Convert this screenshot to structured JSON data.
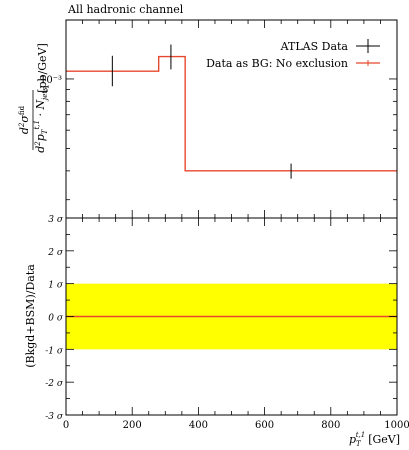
{
  "chart_data": [
    {
      "type": "line",
      "title": "All hadronic channel",
      "ylabel": "d²σ^fid / d²p_T^{t,1} · N_jets [pb/GeV]",
      "ylim_log_label": "10⁻³",
      "ylim": [
        0.00025,
        0.0018
      ],
      "yscale": "log",
      "xlim": [
        0,
        1000
      ],
      "legend_position": "top-right",
      "series": [
        {
          "name": "ATLAS Data",
          "kind": "points-with-errorbars",
          "color": "#000000",
          "points": [
            {
              "x": 140,
              "y": 0.00108,
              "yerr_low": 0.00015,
              "yerr_high": 0.00018
            },
            {
              "x": 317,
              "y": 0.00125,
              "yerr_low": 0.00015,
              "yerr_high": 0.00016
            },
            {
              "x": 680,
              "y": 0.0004,
              "yerr_low": 3e-05,
              "yerr_high": 3e-05
            }
          ]
        },
        {
          "name": "Data as BG: No exclusion",
          "kind": "step",
          "color": "#e8472f",
          "bins": [
            {
              "x0": 0,
              "x1": 280,
              "y": 0.00108
            },
            {
              "x0": 280,
              "x1": 360,
              "y": 0.00125
            },
            {
              "x0": 360,
              "x1": 1000,
              "y": 0.0004
            }
          ]
        }
      ]
    },
    {
      "type": "line",
      "ylabel": "(Bkgd+BSM)/Data",
      "xlabel_main": "p",
      "xlabel_sub": "T",
      "xlabel_sup": "t,1",
      "xlabel_unit": "[GeV]",
      "xlim": [
        0,
        1000
      ],
      "ylim": [
        -3,
        3
      ],
      "xticks": [
        0,
        200,
        400,
        600,
        800,
        1000
      ],
      "yticks": [
        {
          "value": 3,
          "label": "3 σ"
        },
        {
          "value": 2,
          "label": "2 σ"
        },
        {
          "value": 1,
          "label": "1 σ"
        },
        {
          "value": 0,
          "label": "0 σ"
        },
        {
          "value": -1,
          "label": "-1 σ"
        },
        {
          "value": -2,
          "label": "-2 σ"
        },
        {
          "value": -3,
          "label": "-3 σ"
        }
      ],
      "band": {
        "low": -1,
        "high": 1,
        "color": "#ffff00"
      },
      "line": {
        "y": 0,
        "color": "#e8472f"
      }
    }
  ]
}
